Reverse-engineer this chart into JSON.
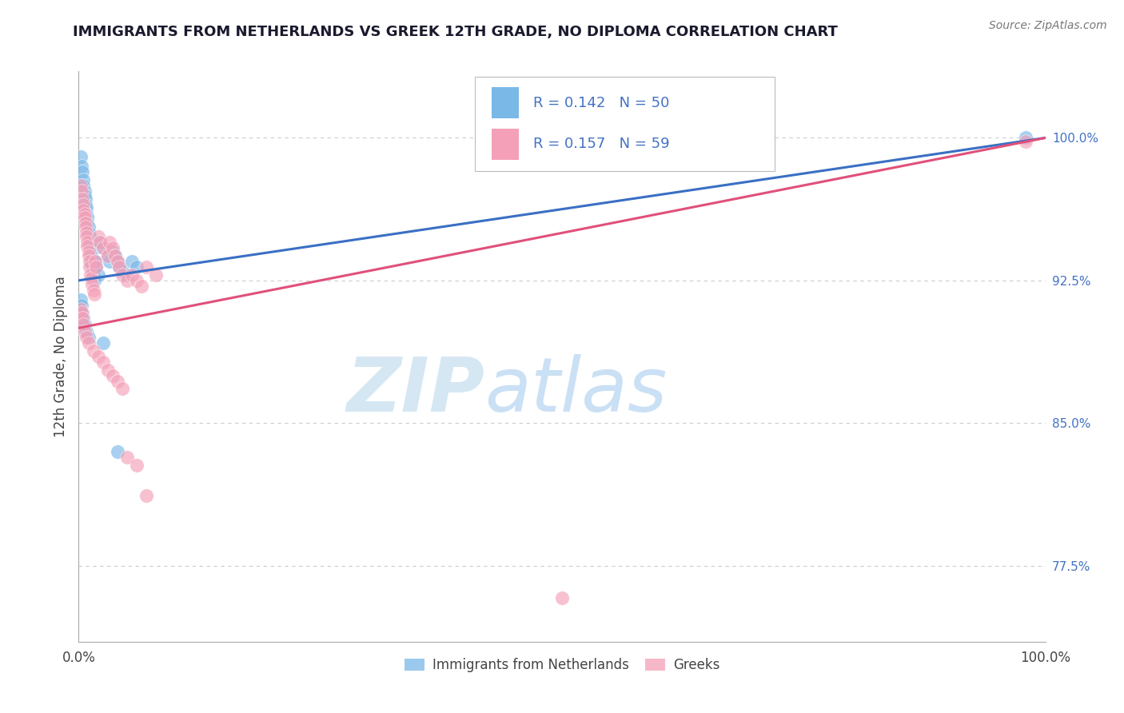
{
  "title": "IMMIGRANTS FROM NETHERLANDS VS GREEK 12TH GRADE, NO DIPLOMA CORRELATION CHART",
  "source": "Source: ZipAtlas.com",
  "ylabel": "12th Grade, No Diploma",
  "legend_entries": [
    "Immigrants from Netherlands",
    "Greeks"
  ],
  "R_netherlands": 0.142,
  "N_netherlands": 50,
  "R_greek": 0.157,
  "N_greek": 59,
  "blue_color": "#7ab8e8",
  "pink_color": "#f4a0b8",
  "blue_line_color": "#3a6fc4",
  "pink_line_color": "#e0507a",
  "right_ytick_values": [
    0.775,
    0.85,
    0.925,
    1.0
  ],
  "right_ytick_labels": [
    "77.5%",
    "85.0%",
    "92.5%",
    "100.0%"
  ],
  "xlim": [
    0.0,
    1.0
  ],
  "ylim": [
    0.735,
    1.035
  ],
  "nl_x": [
    0.002,
    0.003,
    0.004,
    0.005,
    0.005,
    0.006,
    0.006,
    0.007,
    0.007,
    0.008,
    0.008,
    0.009,
    0.009,
    0.01,
    0.01,
    0.011,
    0.011,
    0.012,
    0.012,
    0.013,
    0.013,
    0.014,
    0.015,
    0.015,
    0.016,
    0.017,
    0.018,
    0.02,
    0.022,
    0.025,
    0.03,
    0.032,
    0.035,
    0.038,
    0.04,
    0.042,
    0.045,
    0.05,
    0.055,
    0.06,
    0.002,
    0.003,
    0.004,
    0.005,
    0.006,
    0.008,
    0.01,
    0.025,
    0.04,
    0.98
  ],
  "nl_y": [
    0.99,
    0.985,
    0.982,
    0.978,
    0.975,
    0.972,
    0.97,
    0.968,
    0.965,
    0.963,
    0.96,
    0.958,
    0.955,
    0.953,
    0.95,
    0.948,
    0.945,
    0.943,
    0.94,
    0.938,
    0.935,
    0.933,
    0.93,
    0.928,
    0.925,
    0.935,
    0.932,
    0.928,
    0.945,
    0.942,
    0.938,
    0.935,
    0.94,
    0.938,
    0.935,
    0.932,
    0.93,
    0.928,
    0.935,
    0.932,
    0.915,
    0.912,
    0.908,
    0.905,
    0.902,
    0.898,
    0.895,
    0.892,
    0.835,
    1.0
  ],
  "gr_x": [
    0.002,
    0.003,
    0.004,
    0.005,
    0.005,
    0.006,
    0.006,
    0.007,
    0.007,
    0.008,
    0.008,
    0.009,
    0.009,
    0.01,
    0.01,
    0.011,
    0.011,
    0.012,
    0.013,
    0.014,
    0.015,
    0.016,
    0.017,
    0.018,
    0.02,
    0.022,
    0.025,
    0.03,
    0.032,
    0.035,
    0.038,
    0.04,
    0.042,
    0.045,
    0.05,
    0.055,
    0.06,
    0.065,
    0.07,
    0.08,
    0.002,
    0.003,
    0.004,
    0.005,
    0.006,
    0.008,
    0.01,
    0.015,
    0.02,
    0.025,
    0.03,
    0.035,
    0.04,
    0.045,
    0.05,
    0.06,
    0.07,
    0.5,
    0.98
  ],
  "gr_y": [
    0.975,
    0.972,
    0.968,
    0.965,
    0.962,
    0.96,
    0.958,
    0.955,
    0.953,
    0.95,
    0.948,
    0.945,
    0.943,
    0.94,
    0.938,
    0.935,
    0.932,
    0.928,
    0.926,
    0.923,
    0.92,
    0.918,
    0.935,
    0.932,
    0.948,
    0.945,
    0.942,
    0.938,
    0.945,
    0.942,
    0.938,
    0.935,
    0.932,
    0.928,
    0.925,
    0.928,
    0.925,
    0.922,
    0.932,
    0.928,
    0.91,
    0.908,
    0.905,
    0.902,
    0.898,
    0.895,
    0.892,
    0.888,
    0.885,
    0.882,
    0.878,
    0.875,
    0.872,
    0.868,
    0.832,
    0.828,
    0.812,
    0.758,
    0.998
  ],
  "nl_trend": [
    0.925,
    1.0
  ],
  "gr_trend": [
    0.9,
    1.0
  ],
  "watermark_zip": "ZIP",
  "watermark_atlas": "atlas",
  "background_color": "#ffffff",
  "grid_color": "#cccccc",
  "legend_color": "#4472c4",
  "title_color": "#1a1a2e"
}
